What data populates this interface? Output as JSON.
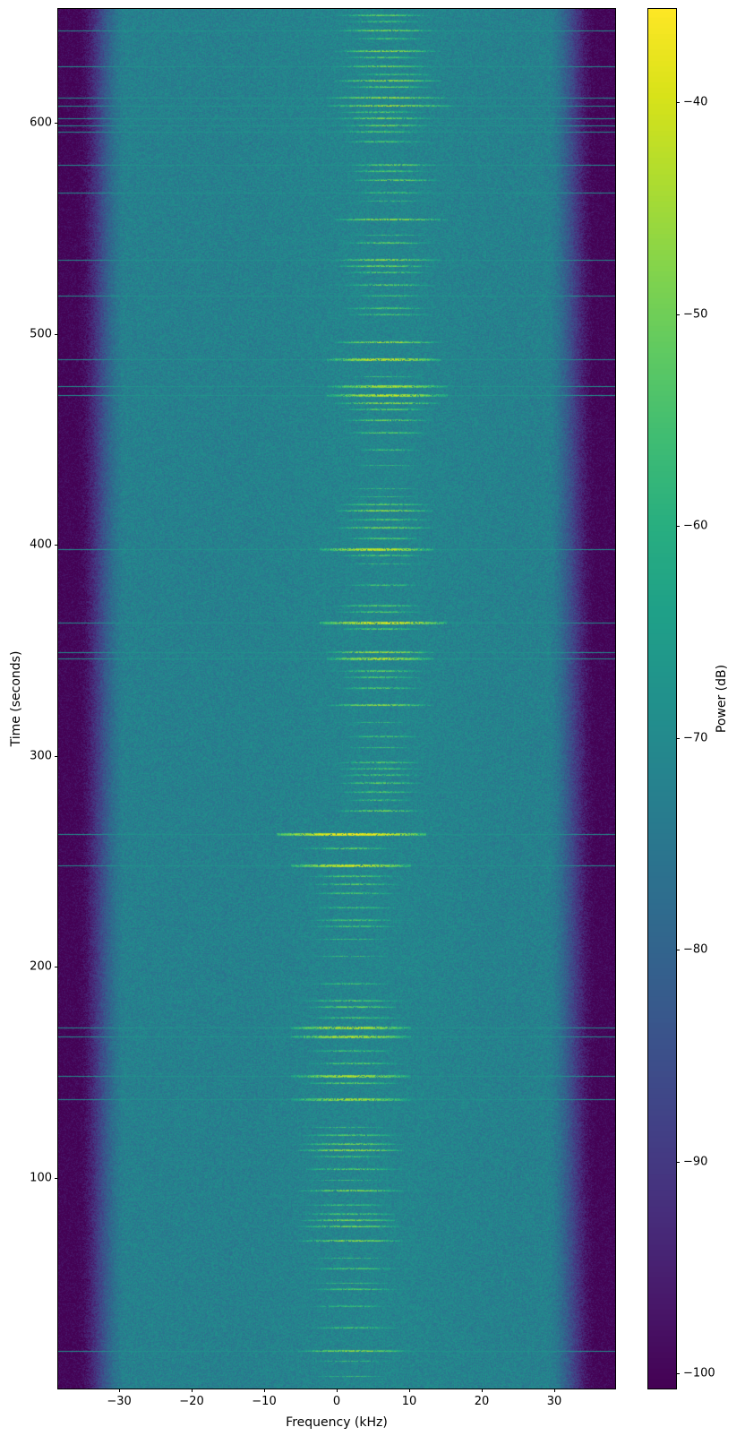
{
  "figure": {
    "background": "#ffffff"
  },
  "chart_data": {
    "type": "heatmap",
    "subtype": "spectrogram-waterfall",
    "title": "",
    "xlabel": "Frequency (kHz)",
    "ylabel": "Time (seconds)",
    "x_range": [
      -38.4,
      38.4
    ],
    "y_range": [
      0,
      654
    ],
    "grid": false,
    "x_ticks": {
      "values": [
        -30,
        -20,
        -10,
        0,
        10,
        20,
        30
      ],
      "labels": [
        "−30",
        "−20",
        "−10",
        "0",
        "10",
        "20",
        "30"
      ]
    },
    "y_ticks": {
      "values": [
        100,
        200,
        300,
        400,
        500,
        600
      ],
      "labels": [
        "100",
        "200",
        "300",
        "400",
        "500",
        "600"
      ]
    },
    "colorbar": {
      "label": "Power (dB)",
      "position": "right",
      "range": [
        -100.7,
        -35.6
      ],
      "tick_values": [
        -40,
        -50,
        -60,
        -70,
        -80,
        -90,
        -100
      ],
      "tick_labels": [
        "−40",
        "−50",
        "−60",
        "−70",
        "−80",
        "−90",
        "−100"
      ]
    },
    "colormap": {
      "name": "viridis",
      "stops": [
        "#440154",
        "#48186a",
        "#472d7b",
        "#424086",
        "#3b528b",
        "#33638d",
        "#2c728e",
        "#26828e",
        "#21918c",
        "#1fa088",
        "#28ae80",
        "#3fbc73",
        "#5ec962",
        "#84d44b",
        "#addc30",
        "#d8e219",
        "#fde725"
      ]
    },
    "noise": {
      "floor_db": -72.4,
      "speckle_db": 9,
      "edge_start_khz": 29,
      "edge_full_khz": 36,
      "edge_floor_db": -100.8,
      "center_bump": {
        "db": 1.2,
        "center_khz": 6,
        "sigma_khz": 9
      },
      "wideband_line_db": -68.5
    },
    "render_seed": 42,
    "burst_format": [
      "time_s",
      "freq_start_khz",
      "freq_end_khz",
      "peak_db",
      "wideband_flag"
    ],
    "bursts": [
      [
        651,
        0,
        13,
        -52,
        0
      ],
      [
        648,
        1,
        12,
        -55,
        0
      ],
      [
        644,
        0,
        14,
        -49,
        1
      ],
      [
        640,
        1,
        13,
        -56,
        0
      ],
      [
        634,
        0,
        14,
        -48,
        0
      ],
      [
        631,
        1,
        12,
        -53,
        0
      ],
      [
        627,
        0,
        13,
        -50,
        1
      ],
      [
        623,
        2,
        14,
        -55,
        0
      ],
      [
        620,
        0,
        14,
        -47,
        0
      ],
      [
        617,
        1,
        13,
        -52,
        0
      ],
      [
        612,
        -1,
        15,
        -46,
        1
      ],
      [
        608,
        -1,
        16,
        -45,
        1
      ],
      [
        605,
        0,
        12,
        -54,
        0
      ],
      [
        602,
        0,
        13,
        -49,
        1
      ],
      [
        599,
        1,
        13,
        -50,
        1
      ],
      [
        596,
        0,
        12,
        -53,
        1
      ],
      [
        591,
        0,
        13,
        -55,
        0
      ],
      [
        580,
        2,
        14,
        -50,
        1
      ],
      [
        577,
        1,
        13,
        -54,
        0
      ],
      [
        573,
        2,
        14,
        -50,
        0
      ],
      [
        567,
        2,
        13,
        -55,
        1
      ],
      [
        563,
        2,
        13,
        -57,
        0
      ],
      [
        554,
        0,
        15,
        -46,
        0
      ],
      [
        547,
        2,
        13,
        -57,
        0
      ],
      [
        543,
        1,
        13,
        -52,
        0
      ],
      [
        535,
        0,
        14,
        -47,
        1
      ],
      [
        532,
        0,
        13,
        -50,
        0
      ],
      [
        529,
        1,
        13,
        -53,
        0
      ],
      [
        523,
        1,
        13,
        -52,
        0
      ],
      [
        518,
        2,
        13,
        -56,
        1
      ],
      [
        512,
        1,
        13,
        -53,
        0
      ],
      [
        509,
        1,
        13,
        -55,
        0
      ],
      [
        496,
        0,
        14,
        -46,
        0
      ],
      [
        488,
        -1,
        14,
        -41,
        1
      ],
      [
        480,
        1,
        12,
        -57,
        0
      ],
      [
        475,
        -1,
        15,
        -44,
        1
      ],
      [
        471,
        -1,
        15,
        -42,
        1
      ],
      [
        467,
        0,
        14,
        -47,
        0
      ],
      [
        464,
        1,
        13,
        -52,
        0
      ],
      [
        459,
        1,
        13,
        -51,
        0
      ],
      [
        453,
        1,
        13,
        -53,
        0
      ],
      [
        445,
        2,
        12,
        -56,
        0
      ],
      [
        438,
        2,
        12,
        -58,
        0
      ],
      [
        427,
        1,
        12,
        -57,
        0
      ],
      [
        423,
        1,
        12,
        -58,
        0
      ],
      [
        419,
        0,
        13,
        -52,
        0
      ],
      [
        416,
        0,
        13,
        -47,
        0
      ],
      [
        412,
        1,
        13,
        -53,
        0
      ],
      [
        408,
        0,
        13,
        -49,
        0
      ],
      [
        403,
        1,
        12,
        -53,
        0
      ],
      [
        398,
        -2,
        13,
        -41,
        1
      ],
      [
        395,
        0,
        12,
        -53,
        0
      ],
      [
        391,
        1,
        12,
        -57,
        0
      ],
      [
        381,
        1,
        12,
        -55,
        0
      ],
      [
        371,
        0,
        12,
        -52,
        0
      ],
      [
        368,
        0,
        12,
        -54,
        0
      ],
      [
        363,
        -2,
        15,
        -39,
        1
      ],
      [
        360,
        0,
        12,
        -52,
        0
      ],
      [
        349,
        -1,
        13,
        -45,
        1
      ],
      [
        346,
        -1,
        13,
        -43,
        1
      ],
      [
        340,
        0,
        12,
        -52,
        0
      ],
      [
        337,
        0,
        12,
        -54,
        0
      ],
      [
        332,
        0,
        12,
        -53,
        0
      ],
      [
        324,
        -1,
        13,
        -47,
        0
      ],
      [
        316,
        1,
        11,
        -58,
        0
      ],
      [
        309,
        1,
        12,
        -55,
        0
      ],
      [
        304,
        1,
        11,
        -57,
        0
      ],
      [
        297,
        0,
        12,
        -53,
        0
      ],
      [
        294,
        0,
        12,
        -54,
        0
      ],
      [
        291,
        0,
        12,
        -54,
        0
      ],
      [
        287,
        0,
        12,
        -52,
        0
      ],
      [
        283,
        0,
        12,
        -54,
        0
      ],
      [
        279,
        1,
        11,
        -56,
        0
      ],
      [
        274,
        0,
        12,
        -50,
        0
      ],
      [
        263,
        -8,
        12,
        -36,
        1
      ],
      [
        256,
        -5,
        8,
        -52,
        0
      ],
      [
        248,
        -6,
        10,
        -40,
        1
      ],
      [
        243,
        -4,
        9,
        -53,
        0
      ],
      [
        239,
        -4,
        9,
        -53,
        0
      ],
      [
        235,
        -4,
        9,
        -55,
        0
      ],
      [
        228,
        -4,
        9,
        -56,
        0
      ],
      [
        222,
        -4,
        9,
        -54,
        0
      ],
      [
        219,
        -4,
        9,
        -55,
        0
      ],
      [
        213,
        -4,
        8,
        -57,
        0
      ],
      [
        205,
        -4,
        8,
        -57,
        0
      ],
      [
        192,
        -4,
        8,
        -56,
        0
      ],
      [
        184,
        -5,
        9,
        -53,
        0
      ],
      [
        181,
        -4,
        9,
        -51,
        0
      ],
      [
        176,
        -4,
        9,
        -54,
        0
      ],
      [
        171,
        -6,
        10,
        -42,
        1
      ],
      [
        167,
        -6,
        10,
        -43,
        1
      ],
      [
        160,
        -5,
        9,
        -55,
        0
      ],
      [
        154,
        -4,
        9,
        -53,
        0
      ],
      [
        148,
        -6,
        10,
        -43,
        1
      ],
      [
        145,
        -5,
        9,
        -52,
        0
      ],
      [
        137,
        -6,
        10,
        -44,
        1
      ],
      [
        124,
        -5,
        8,
        -57,
        0
      ],
      [
        120,
        -5,
        9,
        -53,
        0
      ],
      [
        116,
        -5,
        9,
        -50,
        0
      ],
      [
        113,
        -5,
        9,
        -46,
        0
      ],
      [
        110,
        -5,
        8,
        -56,
        0
      ],
      [
        104,
        -5,
        9,
        -53,
        0
      ],
      [
        99,
        -5,
        8,
        -57,
        0
      ],
      [
        94,
        -5,
        9,
        -48,
        0
      ],
      [
        87,
        -5,
        8,
        -56,
        0
      ],
      [
        83,
        -5,
        9,
        -53,
        0
      ],
      [
        80,
        -5,
        9,
        -50,
        0
      ],
      [
        77,
        -5,
        9,
        -49,
        0
      ],
      [
        70,
        -5,
        9,
        -47,
        0
      ],
      [
        62,
        -4,
        8,
        -57,
        0
      ],
      [
        57,
        -4,
        9,
        -54,
        0
      ],
      [
        50,
        -4,
        8,
        -57,
        0
      ],
      [
        47,
        -4,
        9,
        -54,
        0
      ],
      [
        39,
        -4,
        8,
        -56,
        0
      ],
      [
        29,
        -4,
        9,
        -55,
        0
      ],
      [
        18,
        -5,
        10,
        -47,
        1
      ],
      [
        13,
        -4,
        8,
        -57,
        0
      ],
      [
        6,
        -4,
        8,
        -58,
        0
      ]
    ]
  }
}
